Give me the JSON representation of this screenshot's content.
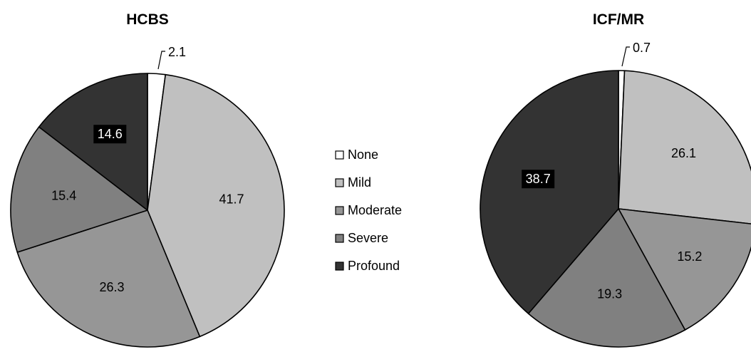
{
  "chart_data": [
    {
      "type": "pie",
      "title": "HCBS",
      "categories": [
        "None",
        "Mild",
        "Moderate",
        "Severe",
        "Profound"
      ],
      "values": [
        2.1,
        41.7,
        26.3,
        15.4,
        14.6
      ],
      "data_labels": [
        "2.1",
        "41.7",
        "26.3",
        "15.4",
        "14.6"
      ]
    },
    {
      "type": "pie",
      "title": "ICF/MR",
      "categories": [
        "None",
        "Mild",
        "Moderate",
        "Severe",
        "Profound"
      ],
      "values": [
        0.7,
        26.1,
        15.2,
        19.3,
        38.7
      ],
      "data_labels": [
        "0.7",
        "26.1",
        "15.2",
        "19.3",
        "38.7"
      ]
    }
  ],
  "legend": {
    "placement": "center",
    "items": [
      {
        "label": "None",
        "color": "#ffffff"
      },
      {
        "label": "Mild",
        "color": "#c0c0c0"
      },
      {
        "label": "Moderate",
        "color": "#969696"
      },
      {
        "label": "Severe",
        "color": "#808080"
      },
      {
        "label": "Profound",
        "color": "#333333"
      }
    ]
  },
  "colors": {
    "None": "#ffffff",
    "Mild": "#c0c0c0",
    "Moderate": "#969696",
    "Severe": "#808080",
    "Profound": "#333333",
    "outline": "#000000"
  }
}
